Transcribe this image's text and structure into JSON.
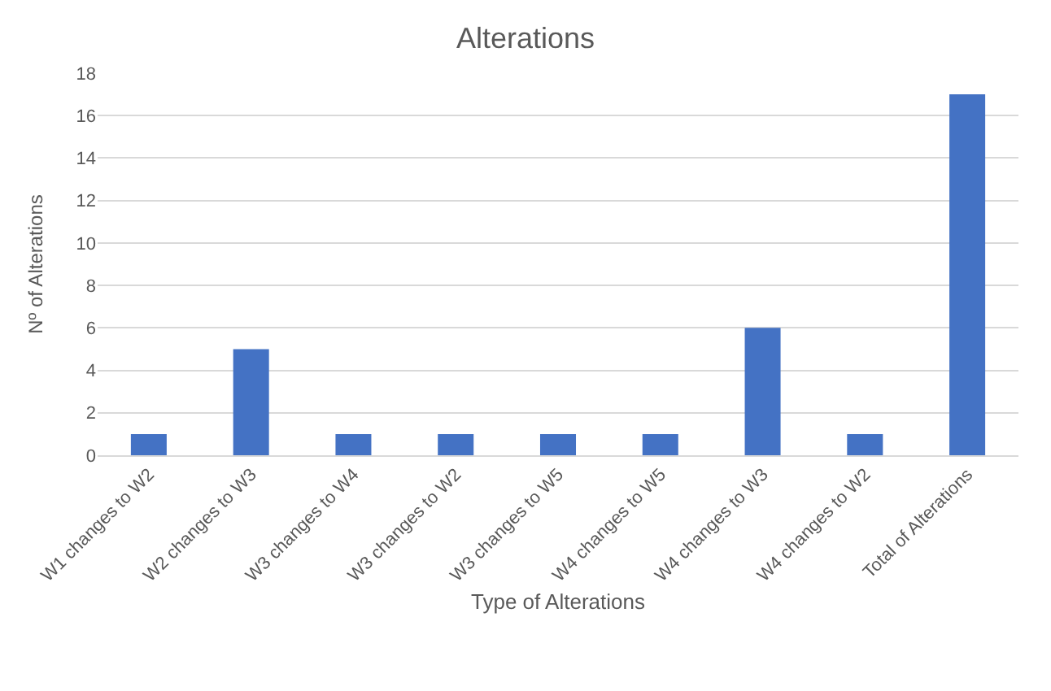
{
  "chart_data": {
    "type": "bar",
    "title": "Alterations",
    "xlabel": "Type of Alterations",
    "ylabel": "Nº of Alterations",
    "categories": [
      "W1 changes to W2",
      "W2 changes to W3",
      "W3 changes to W4",
      "W3 changes to W2",
      "W3 changes to W5",
      "W4 changes to W5",
      "W4 changes to W3",
      "W4 changes to W2",
      "Total of Alterations"
    ],
    "values": [
      1,
      5,
      1,
      1,
      1,
      1,
      6,
      1,
      17
    ],
    "color": "#4472c4",
    "ylim": [
      0,
      18
    ],
    "yticks": [
      0,
      2,
      4,
      6,
      8,
      10,
      12,
      14,
      16,
      18
    ],
    "grid": "y"
  }
}
